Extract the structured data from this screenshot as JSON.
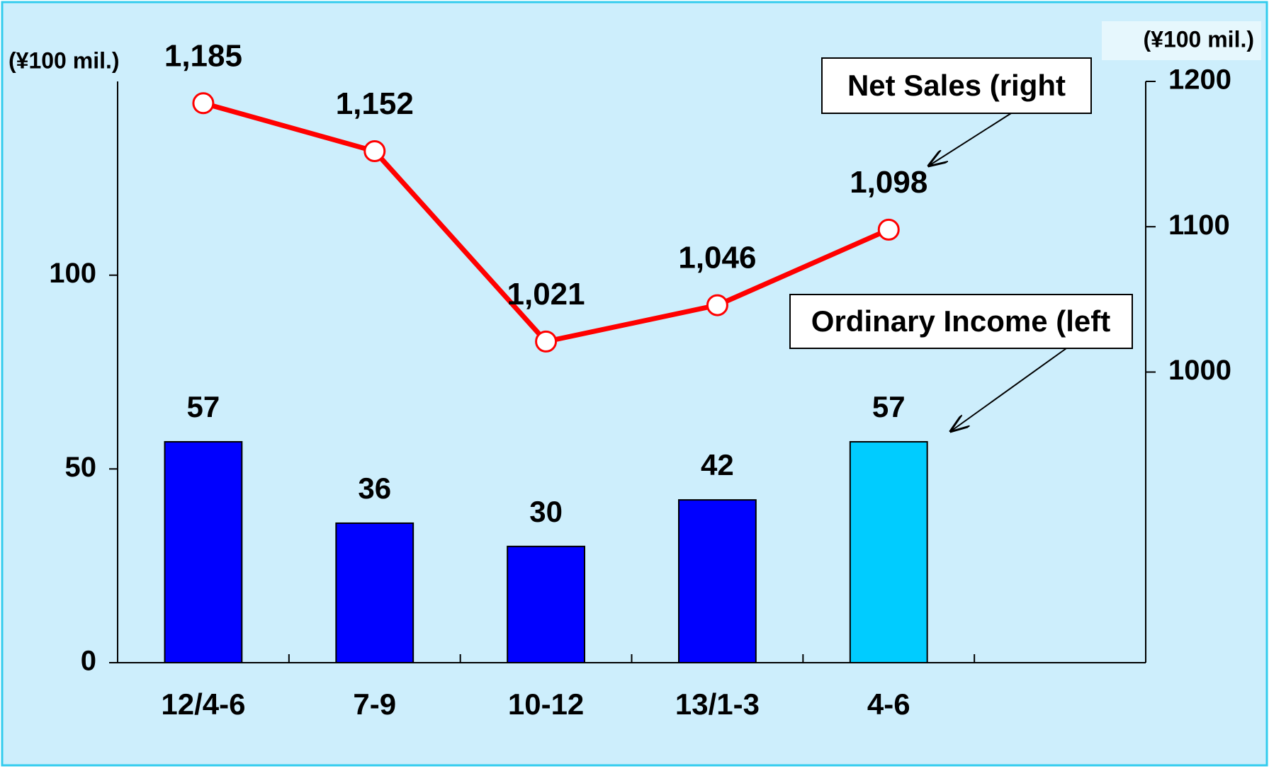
{
  "chart_data": {
    "type": "bar_line",
    "categories": [
      "12/4-6",
      "7-9",
      "10-12",
      "13/1-3",
      "4-6",
      null
    ],
    "series": [
      {
        "name": "Ordinary Income (left",
        "type": "bar",
        "colors": [
          "#0000ff",
          "#0000ff",
          "#0000ff",
          "#0000ff",
          "#00ccff",
          null
        ],
        "values": [
          57,
          36,
          30,
          42,
          57,
          null
        ]
      },
      {
        "name": "Net Sales (right",
        "type": "line",
        "axis": "y2",
        "color": "#ff0000",
        "values": [
          1185,
          1152,
          1021,
          1046,
          1098,
          null
        ],
        "value_labels": [
          "1,185",
          "1,152",
          "1,021",
          "1,046",
          "1,098",
          null
        ]
      }
    ],
    "ylabel": "(¥100 mil.)",
    "y2label": "(¥100 mil.)",
    "ylim": [
      0,
      150
    ],
    "yticks": [
      0,
      50,
      100
    ],
    "y2lim": [
      800,
      1200
    ],
    "y2ticks": [
      1000,
      1100,
      1200
    ]
  }
}
